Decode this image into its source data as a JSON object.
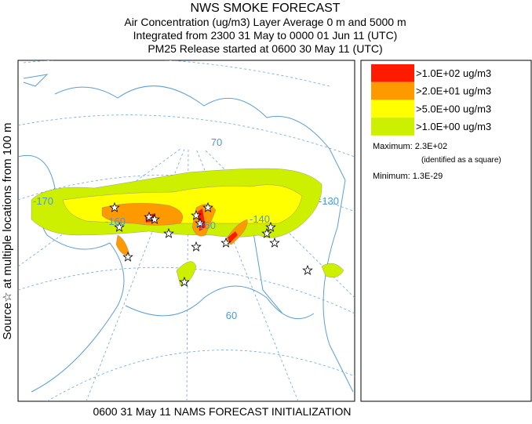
{
  "header": {
    "title": "NWS SMOKE FORECAST",
    "lines": [
      "Air Concentration (ug/m3) Layer Average    0 m and  5000 m",
      "Integrated from 2300 31 May to 0000 01 Jun 11 (UTC)",
      "PM25 Release started at 0600 30 May 11 (UTC)"
    ]
  },
  "side_label": "Source☆ at multiple locations  from  100 m",
  "legend": [
    {
      "label": ">1.0E+02 ug/m3",
      "color": "#ff1a00"
    },
    {
      "label": ">2.0E+01 ug/m3",
      "color": "#ff9900"
    },
    {
      "label": ">5.0E+00 ug/m3",
      "color": "#ffff00"
    },
    {
      "label": ">1.0E+00 ug/m3",
      "color": "#ccf000"
    }
  ],
  "stats": {
    "maximum": "Maximum: 2.3E+02",
    "maximum_note": "(identified as a square)",
    "minimum": "Minimum: 1.3E-29"
  },
  "map_labels": [
    "-170",
    "-160",
    "-150",
    "-140",
    "-130",
    "70",
    "60"
  ],
  "footer": "0600 31 May 11 NAMS FORECAST INITIALIZATION"
}
